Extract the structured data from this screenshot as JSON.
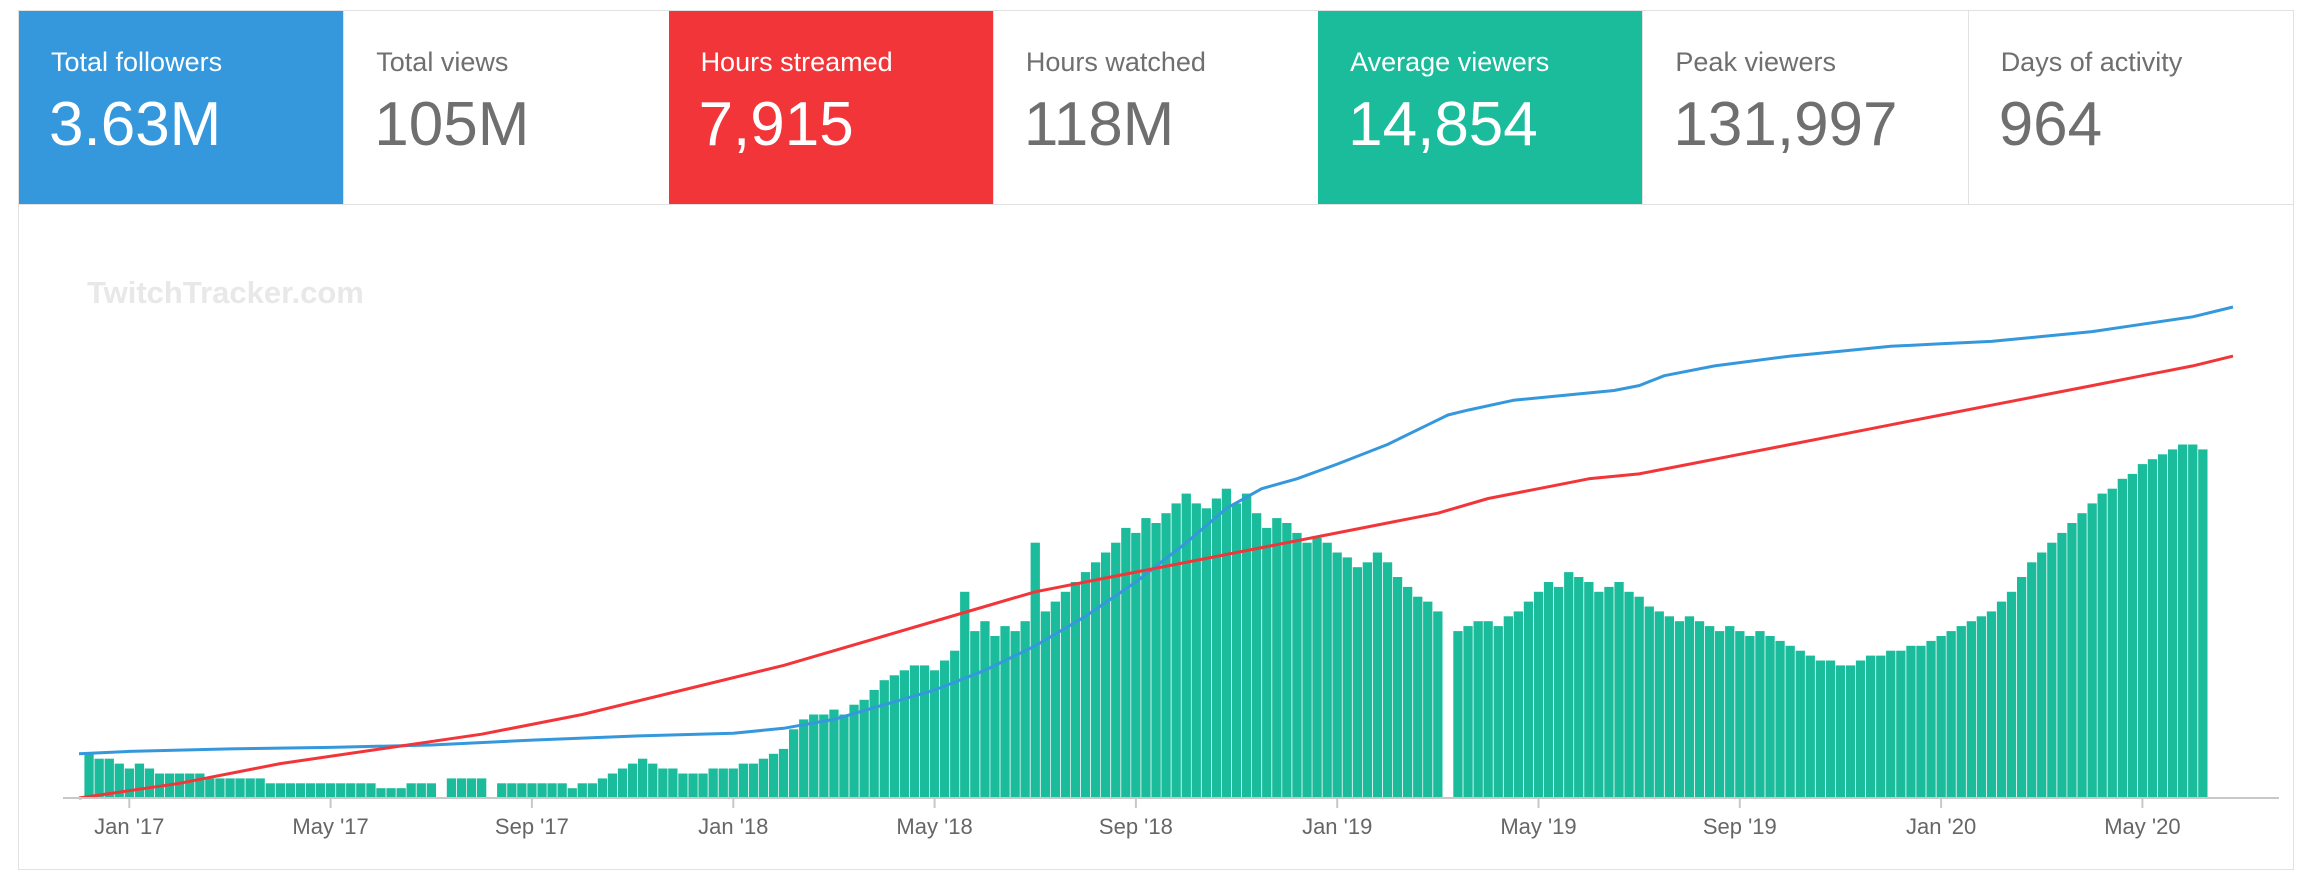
{
  "stats": [
    {
      "label": "Total followers",
      "value": "3.63M",
      "color": "#3598dc"
    },
    {
      "label": "Total views",
      "value": "105M"
    },
    {
      "label": "Hours streamed",
      "value": "7,915",
      "color": "#f23539"
    },
    {
      "label": "Hours watched",
      "value": "118M"
    },
    {
      "label": "Average viewers",
      "value": "14,854",
      "color": "#1bbc9b"
    },
    {
      "label": "Peak viewers",
      "value": "131,997"
    },
    {
      "label": "Days of activity",
      "value": "964"
    }
  ],
  "watermark": "TwitchTracker.com",
  "chart_data": {
    "type": "bar",
    "title": "",
    "xlabel": "",
    "ylabel": "",
    "x_ticks": [
      "Jan '17",
      "May '17",
      "Sep '17",
      "Jan '18",
      "May '18",
      "Sep '18",
      "Jan '19",
      "May '19",
      "Sep '19",
      "Jan '20",
      "May '20"
    ],
    "x_range_months": [
      -1.0,
      41.8
    ],
    "y_range": [
      0,
      100
    ],
    "grid": false,
    "legend": "none",
    "series": [
      {
        "type": "bar",
        "color": "#1bbc9b",
        "points": [
          [
            -0.8,
            9
          ],
          [
            -0.6,
            8
          ],
          [
            -0.4,
            8
          ],
          [
            -0.2,
            7
          ],
          [
            0.0,
            6
          ],
          [
            0.2,
            7
          ],
          [
            0.4,
            6
          ],
          [
            0.6,
            5
          ],
          [
            0.8,
            5
          ],
          [
            1.0,
            5
          ],
          [
            1.2,
            5
          ],
          [
            1.4,
            5
          ],
          [
            1.6,
            4
          ],
          [
            1.8,
            4
          ],
          [
            2.0,
            4
          ],
          [
            2.2,
            4
          ],
          [
            2.4,
            4
          ],
          [
            2.6,
            4
          ],
          [
            2.8,
            3
          ],
          [
            3.0,
            3
          ],
          [
            3.2,
            3
          ],
          [
            3.4,
            3
          ],
          [
            3.6,
            3
          ],
          [
            3.8,
            3
          ],
          [
            4.0,
            3
          ],
          [
            4.2,
            3
          ],
          [
            4.4,
            3
          ],
          [
            4.6,
            3
          ],
          [
            4.8,
            3
          ],
          [
            5.0,
            2
          ],
          [
            5.2,
            2
          ],
          [
            5.4,
            2
          ],
          [
            5.6,
            3
          ],
          [
            5.8,
            3
          ],
          [
            6.0,
            3
          ],
          [
            6.4,
            4
          ],
          [
            6.6,
            4
          ],
          [
            6.8,
            4
          ],
          [
            7.0,
            4
          ],
          [
            7.4,
            3
          ],
          [
            7.6,
            3
          ],
          [
            7.8,
            3
          ],
          [
            8.0,
            3
          ],
          [
            8.2,
            3
          ],
          [
            8.4,
            3
          ],
          [
            8.6,
            3
          ],
          [
            8.8,
            2
          ],
          [
            9.0,
            3
          ],
          [
            9.2,
            3
          ],
          [
            9.4,
            4
          ],
          [
            9.6,
            5
          ],
          [
            9.8,
            6
          ],
          [
            10.0,
            7
          ],
          [
            10.2,
            8
          ],
          [
            10.4,
            7
          ],
          [
            10.6,
            6
          ],
          [
            10.8,
            6
          ],
          [
            11.0,
            5
          ],
          [
            11.2,
            5
          ],
          [
            11.4,
            5
          ],
          [
            11.6,
            6
          ],
          [
            11.8,
            6
          ],
          [
            12.0,
            6
          ],
          [
            12.2,
            7
          ],
          [
            12.4,
            7
          ],
          [
            12.6,
            8
          ],
          [
            12.8,
            9
          ],
          [
            13.0,
            10
          ],
          [
            13.2,
            14
          ],
          [
            13.4,
            16
          ],
          [
            13.6,
            17
          ],
          [
            13.8,
            17
          ],
          [
            14.0,
            18
          ],
          [
            14.2,
            17
          ],
          [
            14.4,
            19
          ],
          [
            14.6,
            20
          ],
          [
            14.8,
            22
          ],
          [
            15.0,
            24
          ],
          [
            15.2,
            25
          ],
          [
            15.4,
            26
          ],
          [
            15.6,
            27
          ],
          [
            15.8,
            27
          ],
          [
            16.0,
            26
          ],
          [
            16.2,
            28
          ],
          [
            16.4,
            30
          ],
          [
            16.6,
            42
          ],
          [
            16.8,
            34
          ],
          [
            17.0,
            36
          ],
          [
            17.2,
            33
          ],
          [
            17.4,
            35
          ],
          [
            17.6,
            34
          ],
          [
            17.8,
            36
          ],
          [
            18.0,
            52
          ],
          [
            18.2,
            38
          ],
          [
            18.4,
            40
          ],
          [
            18.6,
            42
          ],
          [
            18.8,
            44
          ],
          [
            19.0,
            46
          ],
          [
            19.2,
            48
          ],
          [
            19.4,
            50
          ],
          [
            19.6,
            52
          ],
          [
            19.8,
            55
          ],
          [
            20.0,
            54
          ],
          [
            20.2,
            57
          ],
          [
            20.4,
            56
          ],
          [
            20.6,
            58
          ],
          [
            20.8,
            60
          ],
          [
            21.0,
            62
          ],
          [
            21.2,
            60
          ],
          [
            21.4,
            59
          ],
          [
            21.6,
            61
          ],
          [
            21.8,
            63
          ],
          [
            22.0,
            60
          ],
          [
            22.2,
            62
          ],
          [
            22.4,
            58
          ],
          [
            22.6,
            55
          ],
          [
            22.8,
            57
          ],
          [
            23.0,
            56
          ],
          [
            23.2,
            54
          ],
          [
            23.4,
            52
          ],
          [
            23.6,
            53
          ],
          [
            23.8,
            52
          ],
          [
            24.0,
            50
          ],
          [
            24.2,
            49
          ],
          [
            24.4,
            47
          ],
          [
            24.6,
            48
          ],
          [
            24.8,
            50
          ],
          [
            25.0,
            48
          ],
          [
            25.2,
            45
          ],
          [
            25.4,
            43
          ],
          [
            25.6,
            41
          ],
          [
            25.8,
            40
          ],
          [
            26.0,
            38
          ],
          [
            26.4,
            34
          ],
          [
            26.6,
            35
          ],
          [
            26.8,
            36
          ],
          [
            27.0,
            36
          ],
          [
            27.2,
            35
          ],
          [
            27.4,
            37
          ],
          [
            27.6,
            38
          ],
          [
            27.8,
            40
          ],
          [
            28.0,
            42
          ],
          [
            28.2,
            44
          ],
          [
            28.4,
            43
          ],
          [
            28.6,
            46
          ],
          [
            28.8,
            45
          ],
          [
            29.0,
            44
          ],
          [
            29.2,
            42
          ],
          [
            29.4,
            43
          ],
          [
            29.6,
            44
          ],
          [
            29.8,
            42
          ],
          [
            30.0,
            41
          ],
          [
            30.2,
            39
          ],
          [
            30.4,
            38
          ],
          [
            30.6,
            37
          ],
          [
            30.8,
            36
          ],
          [
            31.0,
            37
          ],
          [
            31.2,
            36
          ],
          [
            31.4,
            35
          ],
          [
            31.6,
            34
          ],
          [
            31.8,
            35
          ],
          [
            32.0,
            34
          ],
          [
            32.2,
            33
          ],
          [
            32.4,
            34
          ],
          [
            32.6,
            33
          ],
          [
            32.8,
            32
          ],
          [
            33.0,
            31
          ],
          [
            33.2,
            30
          ],
          [
            33.4,
            29
          ],
          [
            33.6,
            28
          ],
          [
            33.8,
            28
          ],
          [
            34.0,
            27
          ],
          [
            34.2,
            27
          ],
          [
            34.4,
            28
          ],
          [
            34.6,
            29
          ],
          [
            34.8,
            29
          ],
          [
            35.0,
            30
          ],
          [
            35.2,
            30
          ],
          [
            35.4,
            31
          ],
          [
            35.6,
            31
          ],
          [
            35.8,
            32
          ],
          [
            36.0,
            33
          ],
          [
            36.2,
            34
          ],
          [
            36.4,
            35
          ],
          [
            36.6,
            36
          ],
          [
            36.8,
            37
          ],
          [
            37.0,
            38
          ],
          [
            37.2,
            40
          ],
          [
            37.4,
            42
          ],
          [
            37.6,
            45
          ],
          [
            37.8,
            48
          ],
          [
            38.0,
            50
          ],
          [
            38.2,
            52
          ],
          [
            38.4,
            54
          ],
          [
            38.6,
            56
          ],
          [
            38.8,
            58
          ],
          [
            39.0,
            60
          ],
          [
            39.2,
            62
          ],
          [
            39.4,
            63
          ],
          [
            39.6,
            65
          ],
          [
            39.8,
            66
          ],
          [
            40.0,
            68
          ],
          [
            40.2,
            69
          ],
          [
            40.4,
            70
          ],
          [
            40.6,
            71
          ],
          [
            40.8,
            72
          ],
          [
            41.0,
            72
          ],
          [
            41.2,
            71
          ]
        ]
      },
      {
        "type": "line",
        "color": "#3598dc",
        "points": [
          [
            -1,
            9
          ],
          [
            0,
            9.5
          ],
          [
            2,
            10
          ],
          [
            4,
            10.3
          ],
          [
            6,
            10.8
          ],
          [
            8,
            11.8
          ],
          [
            10,
            12.6
          ],
          [
            12,
            13.2
          ],
          [
            13,
            14.2
          ],
          [
            14,
            16
          ],
          [
            15,
            19
          ],
          [
            16,
            22
          ],
          [
            17,
            26
          ],
          [
            18,
            31
          ],
          [
            19,
            37
          ],
          [
            20,
            44
          ],
          [
            21,
            52
          ],
          [
            21.8,
            59
          ],
          [
            22.5,
            63
          ],
          [
            23.2,
            65
          ],
          [
            24,
            68
          ],
          [
            25,
            72
          ],
          [
            25.8,
            76
          ],
          [
            26.2,
            78
          ],
          [
            26.6,
            79
          ],
          [
            27.5,
            81
          ],
          [
            28.5,
            82
          ],
          [
            29.5,
            83
          ],
          [
            30,
            84
          ],
          [
            30.5,
            86
          ],
          [
            31.5,
            88
          ],
          [
            33,
            90
          ],
          [
            34,
            91
          ],
          [
            35,
            92
          ],
          [
            36,
            92.5
          ],
          [
            37,
            93
          ],
          [
            38,
            94
          ],
          [
            39,
            95
          ],
          [
            40,
            96.5
          ],
          [
            41,
            98
          ],
          [
            41.8,
            100
          ]
        ]
      },
      {
        "type": "line",
        "color": "#f23539",
        "points": [
          [
            -1,
            0
          ],
          [
            1,
            3
          ],
          [
            3,
            7
          ],
          [
            5,
            10
          ],
          [
            7,
            13
          ],
          [
            9,
            17
          ],
          [
            11,
            22
          ],
          [
            13,
            27
          ],
          [
            15,
            33
          ],
          [
            17,
            39
          ],
          [
            18,
            42
          ],
          [
            20,
            46
          ],
          [
            22,
            50
          ],
          [
            24,
            54
          ],
          [
            25,
            56
          ],
          [
            26,
            58
          ],
          [
            27,
            61
          ],
          [
            28,
            63
          ],
          [
            29,
            65
          ],
          [
            30,
            66
          ],
          [
            31,
            68
          ],
          [
            32,
            70
          ],
          [
            33,
            72
          ],
          [
            34,
            74
          ],
          [
            35,
            76
          ],
          [
            36,
            78
          ],
          [
            37,
            80
          ],
          [
            38,
            82
          ],
          [
            39,
            84
          ],
          [
            40,
            86
          ],
          [
            41,
            88
          ],
          [
            41.8,
            90
          ]
        ]
      }
    ]
  }
}
